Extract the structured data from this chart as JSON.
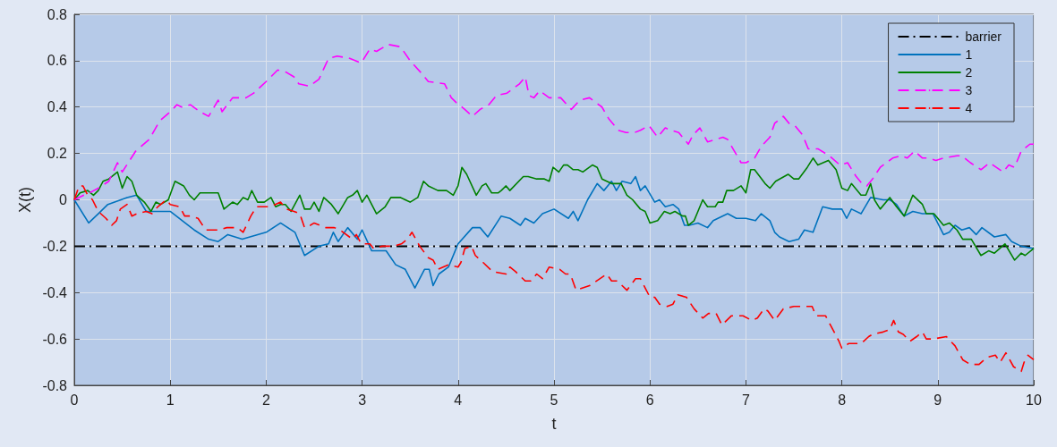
{
  "chart_data": {
    "type": "line",
    "xlabel": "t",
    "ylabel": "X(t)",
    "xlim": [
      0,
      10
    ],
    "xticks": [
      0,
      1,
      2,
      3,
      4,
      5,
      6,
      7,
      8,
      9,
      10
    ],
    "ylim": [
      -0.8,
      0.8
    ],
    "yticks": [
      -0.8,
      -0.6,
      -0.4,
      -0.2,
      0,
      0.2,
      0.4,
      0.6,
      0.8
    ],
    "grid": true,
    "legend": "top right",
    "marker": "none",
    "ref_lines": [
      {
        "axis": "y",
        "value": -0.2,
        "label": "barrier",
        "color": "#000000",
        "line_style": "dashdot"
      }
    ],
    "series": [
      {
        "name": "1",
        "color": "#0072bd",
        "line_style": "solid",
        "x": [
          0,
          0.15,
          0.25,
          0.35,
          0.55,
          0.65,
          0.75,
          1.0,
          1.25,
          1.4,
          1.5,
          1.6,
          1.75,
          2.0,
          2.15,
          2.3,
          2.4,
          2.55,
          2.65,
          2.7,
          2.75,
          2.85,
          2.95,
          3.0,
          3.1,
          3.25,
          3.35,
          3.45,
          3.55,
          3.65,
          3.7,
          3.74,
          3.8,
          3.9,
          4.0,
          4.15,
          4.23,
          4.31,
          4.45,
          4.54,
          4.65,
          4.7,
          4.79,
          4.88,
          5.0,
          5.15,
          5.2,
          5.25,
          5.35,
          5.45,
          5.52,
          5.6,
          5.65,
          5.71,
          5.8,
          5.85,
          5.9,
          5.95,
          6.05,
          6.1,
          6.16,
          6.24,
          6.3,
          6.36,
          6.41,
          6.5,
          6.6,
          6.66,
          6.81,
          6.9,
          7.0,
          7.1,
          7.16,
          7.25,
          7.3,
          7.35,
          7.45,
          7.55,
          7.61,
          7.7,
          7.8,
          7.9,
          8.0,
          8.05,
          8.1,
          8.2,
          8.3,
          8.43,
          8.5,
          8.57,
          8.65,
          8.74,
          8.84,
          8.95,
          9.06,
          9.12,
          9.18,
          9.25,
          9.33,
          9.4,
          9.46,
          9.59,
          9.71,
          9.77,
          9.87,
          10
        ],
        "values": [
          0,
          -0.1,
          -0.06,
          -0.02,
          0.01,
          0.02,
          -0.05,
          -0.05,
          -0.13,
          -0.17,
          -0.18,
          -0.15,
          -0.17,
          -0.14,
          -0.1,
          -0.14,
          -0.24,
          -0.2,
          -0.19,
          -0.14,
          -0.18,
          -0.12,
          -0.17,
          -0.13,
          -0.22,
          -0.22,
          -0.28,
          -0.3,
          -0.38,
          -0.3,
          -0.3,
          -0.37,
          -0.32,
          -0.29,
          -0.19,
          -0.12,
          -0.12,
          -0.16,
          -0.07,
          -0.08,
          -0.11,
          -0.08,
          -0.1,
          -0.06,
          -0.04,
          -0.08,
          -0.05,
          -0.09,
          0,
          0.07,
          0.04,
          0.08,
          0.04,
          0.08,
          0.07,
          0.1,
          0.04,
          0.06,
          -0.01,
          0,
          -0.03,
          -0.02,
          -0.04,
          -0.11,
          -0.11,
          -0.1,
          -0.12,
          -0.09,
          -0.06,
          -0.08,
          -0.08,
          -0.09,
          -0.06,
          -0.09,
          -0.14,
          -0.16,
          -0.18,
          -0.17,
          -0.13,
          -0.14,
          -0.03,
          -0.04,
          -0.04,
          -0.08,
          -0.04,
          -0.06,
          0.01,
          0,
          0,
          -0.02,
          -0.07,
          -0.05,
          -0.06,
          -0.06,
          -0.15,
          -0.14,
          -0.11,
          -0.13,
          -0.12,
          -0.15,
          -0.12,
          -0.16,
          -0.15,
          -0.18,
          -0.2,
          -0.21
        ]
      },
      {
        "name": "2",
        "color": "#008000",
        "line_style": "solid",
        "x": [
          0,
          0.06,
          0.14,
          0.2,
          0.25,
          0.3,
          0.36,
          0.45,
          0.5,
          0.55,
          0.6,
          0.65,
          0.73,
          0.8,
          0.85,
          0.9,
          0.98,
          1.05,
          1.14,
          1.2,
          1.25,
          1.31,
          1.4,
          1.5,
          1.56,
          1.65,
          1.7,
          1.76,
          1.81,
          1.85,
          1.91,
          1.98,
          2.05,
          2.1,
          2.15,
          2.2,
          2.26,
          2.35,
          2.4,
          2.46,
          2.5,
          2.55,
          2.6,
          2.68,
          2.75,
          2.85,
          2.9,
          2.95,
          3.0,
          3.05,
          3.15,
          3.24,
          3.3,
          3.4,
          3.5,
          3.58,
          3.64,
          3.69,
          3.79,
          3.88,
          3.95,
          4.0,
          4.04,
          4.09,
          4.19,
          4.25,
          4.29,
          4.35,
          4.42,
          4.45,
          4.5,
          4.54,
          4.68,
          4.73,
          4.82,
          4.9,
          4.95,
          4.99,
          5.05,
          5.1,
          5.14,
          5.2,
          5.25,
          5.3,
          5.4,
          5.45,
          5.5,
          5.6,
          5.7,
          5.76,
          5.82,
          5.9,
          5.95,
          6.0,
          6.08,
          6.15,
          6.21,
          6.26,
          6.34,
          6.37,
          6.4,
          6.46,
          6.5,
          6.55,
          6.6,
          6.68,
          6.71,
          6.76,
          6.8,
          6.87,
          6.95,
          7.0,
          7.05,
          7.09,
          7.2,
          7.25,
          7.31,
          7.44,
          7.5,
          7.55,
          7.64,
          7.7,
          7.75,
          7.86,
          7.94,
          8.0,
          8.06,
          8.1,
          8.2,
          8.25,
          8.3,
          8.34,
          8.4,
          8.5,
          8.57,
          8.65,
          8.74,
          8.84,
          8.88,
          8.96,
          9.06,
          9.12,
          9.2,
          9.26,
          9.35,
          9.45,
          9.53,
          9.59,
          9.7,
          9.8,
          9.87,
          9.91,
          10
        ],
        "values": [
          0,
          0.03,
          0.04,
          0.02,
          0.04,
          0.08,
          0.09,
          0.12,
          0.05,
          0.1,
          0.08,
          0.02,
          -0.01,
          -0.05,
          -0.01,
          -0.02,
          0,
          0.08,
          0.06,
          0.02,
          0,
          0.03,
          0.03,
          0.03,
          -0.04,
          -0.01,
          -0.02,
          0.01,
          0,
          0.04,
          -0.01,
          -0.01,
          0.01,
          -0.03,
          -0.02,
          -0.02,
          -0.05,
          0.02,
          -0.04,
          -0.04,
          -0.01,
          -0.05,
          0.01,
          -0.02,
          -0.06,
          0.01,
          0.02,
          0.04,
          -0.01,
          0.02,
          -0.06,
          -0.03,
          0.01,
          0.01,
          -0.01,
          0.01,
          0.08,
          0.06,
          0.04,
          0.04,
          0.02,
          0.06,
          0.14,
          0.11,
          0.02,
          0.06,
          0.07,
          0.03,
          0.03,
          0.04,
          0.06,
          0.04,
          0.1,
          0.1,
          0.09,
          0.09,
          0.08,
          0.14,
          0.12,
          0.15,
          0.15,
          0.13,
          0.13,
          0.12,
          0.15,
          0.14,
          0.09,
          0.07,
          0.07,
          0.02,
          0,
          -0.04,
          -0.05,
          -0.1,
          -0.09,
          -0.05,
          -0.06,
          -0.05,
          -0.07,
          -0.07,
          -0.11,
          -0.09,
          -0.05,
          0,
          -0.03,
          -0.03,
          -0.01,
          -0.01,
          0.04,
          0.04,
          0.06,
          0.03,
          0.13,
          0.13,
          0.07,
          0.05,
          0.08,
          0.11,
          0.09,
          0.09,
          0.14,
          0.18,
          0.15,
          0.17,
          0.13,
          0.05,
          0.04,
          0.07,
          0.02,
          0.02,
          0.07,
          0,
          -0.04,
          0.01,
          -0.03,
          -0.07,
          0.02,
          -0.02,
          -0.06,
          -0.06,
          -0.11,
          -0.1,
          -0.13,
          -0.17,
          -0.17,
          -0.24,
          -0.22,
          -0.23,
          -0.19,
          -0.26,
          -0.23,
          -0.24,
          -0.21
        ]
      },
      {
        "name": "3",
        "color": "#ff00ff",
        "line_style": "dashed",
        "x": [
          0,
          0.1,
          0.16,
          0.25,
          0.36,
          0.45,
          0.5,
          0.64,
          0.78,
          0.89,
          1.0,
          1.07,
          1.12,
          1.21,
          1.31,
          1.4,
          1.5,
          1.54,
          1.65,
          1.79,
          1.87,
          2.0,
          2.12,
          2.21,
          2.29,
          2.34,
          2.45,
          2.55,
          2.65,
          2.74,
          2.87,
          2.99,
          3.08,
          3.15,
          3.27,
          3.4,
          3.5,
          3.61,
          3.69,
          3.86,
          3.93,
          3.98,
          4.07,
          4.15,
          4.23,
          4.32,
          4.4,
          4.51,
          4.64,
          4.7,
          4.74,
          4.79,
          4.85,
          4.95,
          5.07,
          5.18,
          5.27,
          5.37,
          5.5,
          5.57,
          5.67,
          5.75,
          5.84,
          5.9,
          5.99,
          6.08,
          6.16,
          6.22,
          6.3,
          6.4,
          6.45,
          6.52,
          6.6,
          6.68,
          6.76,
          6.81,
          6.88,
          6.95,
          7.0,
          7.09,
          7.16,
          7.25,
          7.3,
          7.39,
          7.45,
          7.51,
          7.59,
          7.65,
          7.75,
          7.87,
          7.98,
          8.06,
          8.15,
          8.21,
          8.26,
          8.32,
          8.4,
          8.53,
          8.62,
          8.68,
          8.76,
          8.84,
          8.9,
          8.98,
          9.06,
          9.2,
          9.25,
          9.34,
          9.45,
          9.54,
          9.68,
          9.74,
          9.8,
          9.87,
          9.96,
          10
        ],
        "values": [
          0,
          0.02,
          0.03,
          0.05,
          0.08,
          0.16,
          0.12,
          0.21,
          0.26,
          0.34,
          0.38,
          0.41,
          0.4,
          0.41,
          0.38,
          0.36,
          0.43,
          0.38,
          0.44,
          0.44,
          0.46,
          0.51,
          0.56,
          0.55,
          0.53,
          0.5,
          0.49,
          0.52,
          0.61,
          0.62,
          0.61,
          0.59,
          0.65,
          0.64,
          0.67,
          0.66,
          0.6,
          0.55,
          0.51,
          0.5,
          0.44,
          0.42,
          0.39,
          0.36,
          0.39,
          0.41,
          0.45,
          0.46,
          0.5,
          0.53,
          0.45,
          0.44,
          0.47,
          0.44,
          0.44,
          0.39,
          0.43,
          0.44,
          0.4,
          0.35,
          0.3,
          0.29,
          0.29,
          0.3,
          0.32,
          0.27,
          0.31,
          0.3,
          0.29,
          0.24,
          0.28,
          0.31,
          0.25,
          0.26,
          0.27,
          0.26,
          0.21,
          0.16,
          0.16,
          0.18,
          0.23,
          0.27,
          0.33,
          0.36,
          0.33,
          0.32,
          0.28,
          0.22,
          0.22,
          0.19,
          0.15,
          0.16,
          0.1,
          0.07,
          0.06,
          0.09,
          0.14,
          0.18,
          0.19,
          0.18,
          0.21,
          0.18,
          0.18,
          0.17,
          0.18,
          0.19,
          0.19,
          0.16,
          0.13,
          0.16,
          0.12,
          0.15,
          0.14,
          0.21,
          0.24,
          0.24
        ]
      },
      {
        "name": "4",
        "color": "#ff0000",
        "line_style": "dashed",
        "x": [
          0,
          0.05,
          0.09,
          0.14,
          0.19,
          0.25,
          0.33,
          0.39,
          0.44,
          0.48,
          0.55,
          0.6,
          0.65,
          0.75,
          0.81,
          0.87,
          0.96,
          1.0,
          1.1,
          1.15,
          1.21,
          1.29,
          1.37,
          1.5,
          1.59,
          1.7,
          1.76,
          1.84,
          1.9,
          2.04,
          2.15,
          2.21,
          2.29,
          2.35,
          2.4,
          2.46,
          2.5,
          2.62,
          2.71,
          2.77,
          2.9,
          2.94,
          2.99,
          3.08,
          3.12,
          3.21,
          3.33,
          3.41,
          3.47,
          3.52,
          3.6,
          3.69,
          3.74,
          3.79,
          3.9,
          4.0,
          4.03,
          4.07,
          4.14,
          4.18,
          4.26,
          4.36,
          4.5,
          4.54,
          4.6,
          4.7,
          4.76,
          4.82,
          4.88,
          4.95,
          5.06,
          5.12,
          5.17,
          5.23,
          5.37,
          5.48,
          5.55,
          5.6,
          5.66,
          5.76,
          5.85,
          5.9,
          5.95,
          6.0,
          6.05,
          6.1,
          6.18,
          6.24,
          6.29,
          6.38,
          6.46,
          6.55,
          6.61,
          6.69,
          6.75,
          6.85,
          6.97,
          7.06,
          7.12,
          7.19,
          7.23,
          7.3,
          7.39,
          7.5,
          7.62,
          7.69,
          7.73,
          7.83,
          7.92,
          7.97,
          8.0,
          8.07,
          8.2,
          8.28,
          8.32,
          8.43,
          8.5,
          8.54,
          8.59,
          8.64,
          8.71,
          8.78,
          8.84,
          8.88,
          8.95,
          9.09,
          9.18,
          9.26,
          9.34,
          9.43,
          9.51,
          9.6,
          9.65,
          9.71,
          9.79,
          9.87,
          9.9,
          9.94,
          10
        ],
        "values": [
          0,
          0.06,
          0.06,
          0.02,
          0,
          -0.05,
          -0.08,
          -0.11,
          -0.09,
          -0.04,
          -0.02,
          -0.07,
          -0.06,
          -0.05,
          -0.06,
          -0.03,
          0,
          -0.02,
          -0.03,
          -0.07,
          -0.07,
          -0.08,
          -0.13,
          -0.13,
          -0.12,
          -0.12,
          -0.14,
          -0.07,
          -0.03,
          -0.03,
          -0.01,
          -0.04,
          -0.05,
          -0.06,
          -0.12,
          -0.11,
          -0.1,
          -0.12,
          -0.12,
          -0.13,
          -0.17,
          -0.15,
          -0.19,
          -0.19,
          -0.21,
          -0.2,
          -0.2,
          -0.19,
          -0.17,
          -0.14,
          -0.2,
          -0.25,
          -0.26,
          -0.3,
          -0.28,
          -0.29,
          -0.27,
          -0.21,
          -0.2,
          -0.24,
          -0.27,
          -0.31,
          -0.32,
          -0.29,
          -0.31,
          -0.35,
          -0.35,
          -0.32,
          -0.34,
          -0.29,
          -0.3,
          -0.32,
          -0.32,
          -0.39,
          -0.37,
          -0.34,
          -0.32,
          -0.35,
          -0.35,
          -0.39,
          -0.34,
          -0.34,
          -0.38,
          -0.42,
          -0.42,
          -0.45,
          -0.46,
          -0.45,
          -0.41,
          -0.42,
          -0.47,
          -0.51,
          -0.49,
          -0.49,
          -0.54,
          -0.5,
          -0.5,
          -0.52,
          -0.51,
          -0.47,
          -0.48,
          -0.52,
          -0.47,
          -0.46,
          -0.46,
          -0.46,
          -0.5,
          -0.5,
          -0.57,
          -0.61,
          -0.64,
          -0.62,
          -0.62,
          -0.59,
          -0.58,
          -0.57,
          -0.56,
          -0.52,
          -0.57,
          -0.58,
          -0.61,
          -0.59,
          -0.57,
          -0.6,
          -0.6,
          -0.59,
          -0.63,
          -0.69,
          -0.71,
          -0.71,
          -0.68,
          -0.67,
          -0.7,
          -0.66,
          -0.72,
          -0.74,
          -0.7,
          -0.67,
          -0.69
        ]
      }
    ]
  }
}
